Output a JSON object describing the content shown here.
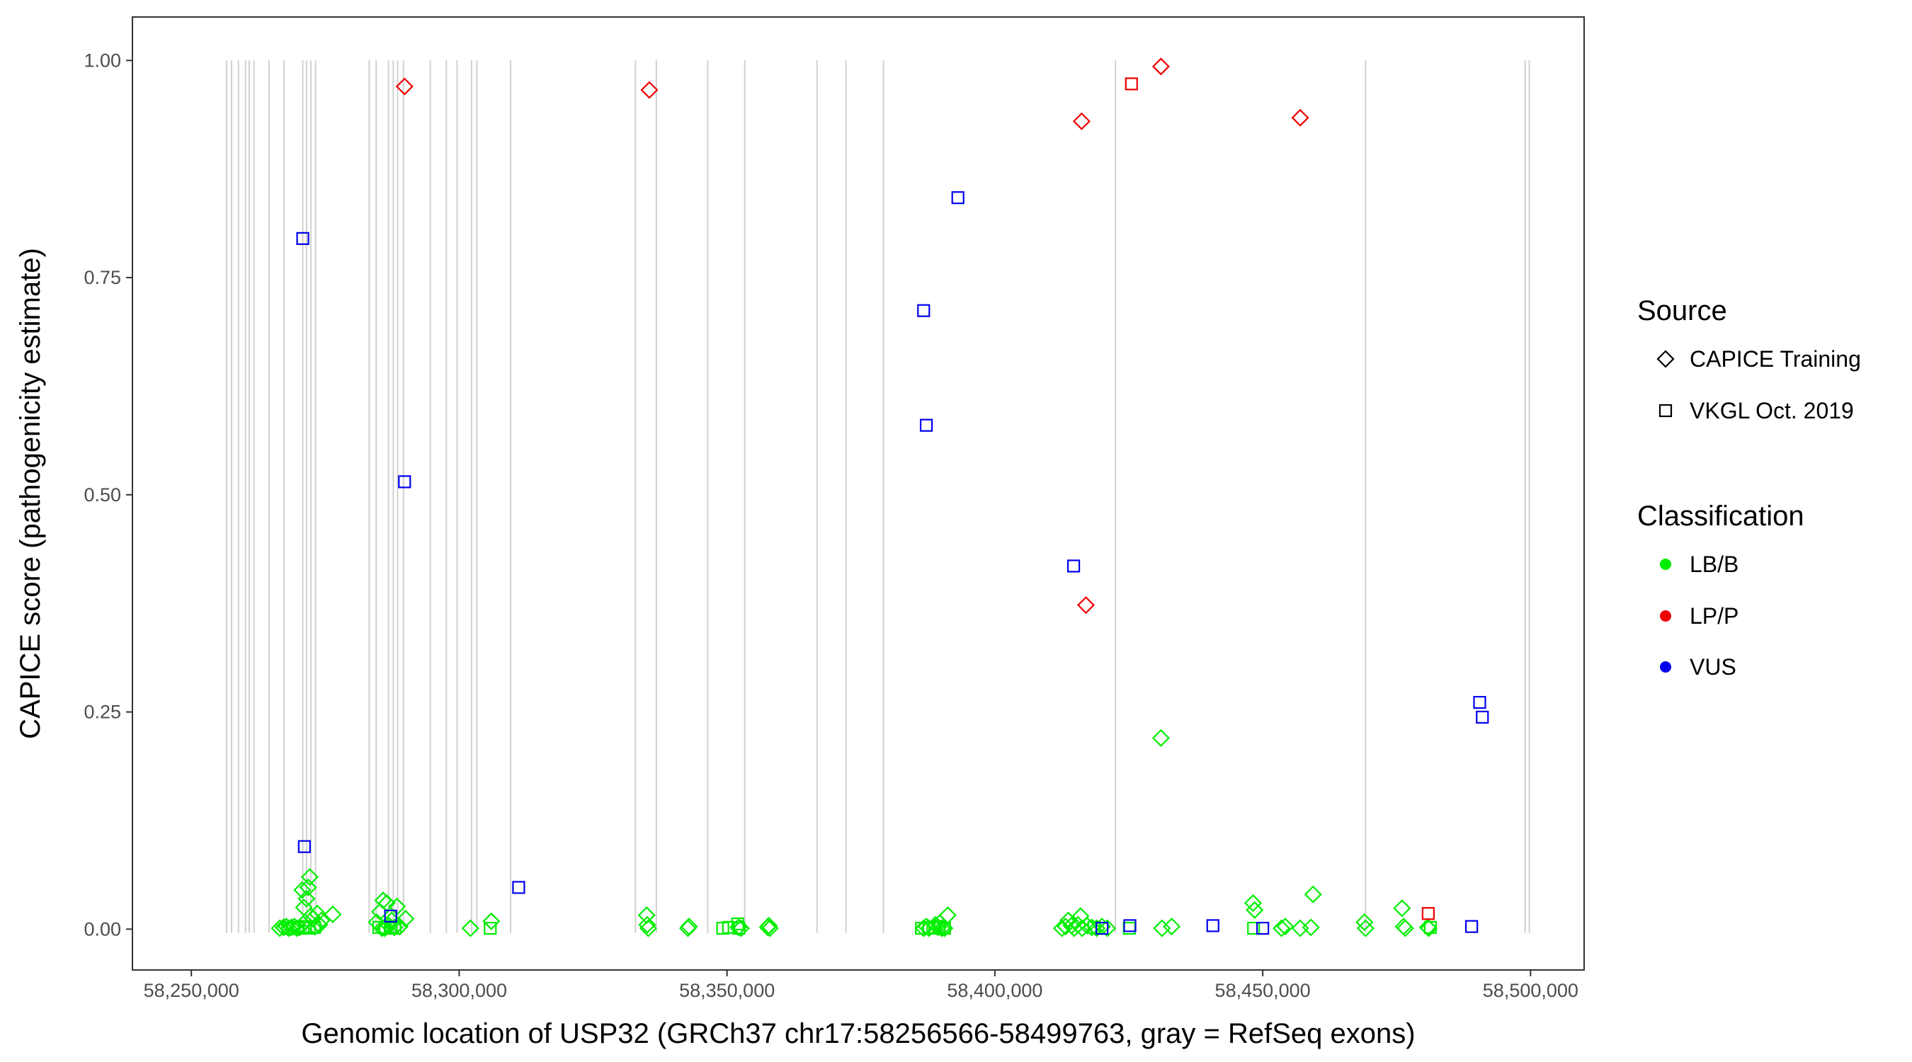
{
  "chart_data": {
    "type": "scatter",
    "xlabel": "Genomic location of USP32 (GRCh37 chr17:58256566-58499763, gray = RefSeq exons)",
    "ylabel": "CAPICE score (pathogenicity estimate)",
    "xlim": [
      58239000,
      58510000
    ],
    "ylim": [
      -0.047,
      1.05
    ],
    "x_ticks": [
      58250000,
      58300000,
      58350000,
      58400000,
      58450000,
      58500000
    ],
    "x_tick_labels": [
      "58,250,000",
      "58,300,000",
      "58,350,000",
      "58,400,000",
      "58,450,000",
      "58,500,000"
    ],
    "y_ticks": [
      0,
      0.25,
      0.5,
      0.75,
      1.0
    ],
    "y_tick_labels": [
      "0.00",
      "0.25",
      "0.50",
      "0.75",
      "1.00"
    ],
    "grid": false,
    "exons": [
      58256566,
      58257500,
      58258800,
      58260100,
      58260800,
      58261700,
      58264500,
      58267300,
      58270800,
      58271500,
      58272300,
      58273200,
      58283200,
      58284500,
      58286800,
      58287700,
      58288500,
      58289600,
      58294600,
      58297600,
      58299600,
      58302300,
      58303300,
      58309600,
      58332900,
      58336800,
      58346400,
      58353300,
      58366800,
      58372200,
      58379200,
      58422500,
      58469200,
      58499000,
      58499763
    ],
    "legend": {
      "position": "right",
      "shape_title": "Source",
      "shape_entries": [
        {
          "label": "CAPICE Training",
          "shape": "diamond"
        },
        {
          "label": "VKGL Oct. 2019",
          "shape": "square"
        }
      ],
      "color_title": "Classification",
      "color_entries": [
        {
          "label": "LB/B",
          "color": "#00ee00"
        },
        {
          "label": "LP/P",
          "color": "#ee0000"
        },
        {
          "label": "VUS",
          "color": "#0000ee"
        }
      ]
    },
    "series": [
      {
        "source": "CAPICE Training",
        "shape": "diamond",
        "classification": "LB/B",
        "color": "#00ee00",
        "points": [
          [
            58266500,
            0.001
          ],
          [
            58267200,
            0.002
          ],
          [
            58267700,
            0.003
          ],
          [
            58268200,
            0.001
          ],
          [
            58268700,
            0.002
          ],
          [
            58269200,
            0.003
          ],
          [
            58269700,
            0.001
          ],
          [
            58270200,
            0.002
          ],
          [
            58270700,
            0.045
          ],
          [
            58271000,
            0.025
          ],
          [
            58271200,
            0.008
          ],
          [
            58271500,
            0.035
          ],
          [
            58271800,
            0.048
          ],
          [
            58272100,
            0.06
          ],
          [
            58272300,
            0.015
          ],
          [
            58272700,
            0.012
          ],
          [
            58273100,
            0.003
          ],
          [
            58273500,
            0.018
          ],
          [
            58273900,
            0.005
          ],
          [
            58274300,
            0.01
          ],
          [
            58276400,
            0.017
          ],
          [
            58284600,
            0.008
          ],
          [
            58285200,
            0.02
          ],
          [
            58285600,
            0.001
          ],
          [
            58285800,
            0.033
          ],
          [
            58286100,
            0.001
          ],
          [
            58286500,
            0.03
          ],
          [
            58286900,
            0.004
          ],
          [
            58287400,
            0.01
          ],
          [
            58287900,
            0.002
          ],
          [
            58288400,
            0.026
          ],
          [
            58288900,
            0.003
          ],
          [
            58290000,
            0.012
          ],
          [
            58302100,
            0.001
          ],
          [
            58306000,
            0.009
          ],
          [
            58335000,
            0.016
          ],
          [
            58335100,
            0.005
          ],
          [
            58335300,
            0.001
          ],
          [
            58342700,
            0.001
          ],
          [
            58342900,
            0.003
          ],
          [
            58352100,
            0.002
          ],
          [
            58352600,
            0.001
          ],
          [
            58357600,
            0.002
          ],
          [
            58357800,
            0.004
          ],
          [
            58358000,
            0.001
          ],
          [
            58386700,
            0.001
          ],
          [
            58387200,
            0.003
          ],
          [
            58387700,
            0.001
          ],
          [
            58388900,
            0.005
          ],
          [
            58389400,
            0.002
          ],
          [
            58389700,
            0.007
          ],
          [
            58390100,
            0.001
          ],
          [
            58390600,
            0.001
          ],
          [
            58391200,
            0.016
          ],
          [
            58412500,
            0.001
          ],
          [
            58413200,
            0.003
          ],
          [
            58413700,
            0.01
          ],
          [
            58414300,
            0.004
          ],
          [
            58414800,
            0.001
          ],
          [
            58415500,
            0.005
          ],
          [
            58416000,
            0.015
          ],
          [
            58416300,
            0.001
          ],
          [
            58417200,
            0.004
          ],
          [
            58418100,
            0.002
          ],
          [
            58419000,
            0.001
          ],
          [
            58420000,
            0.003
          ],
          [
            58421000,
            0.001
          ],
          [
            58431000,
            0.22
          ],
          [
            58431200,
            0.001
          ],
          [
            58433000,
            0.003
          ],
          [
            58448200,
            0.03
          ],
          [
            58448500,
            0.022
          ],
          [
            58453500,
            0.001
          ],
          [
            58454200,
            0.003
          ],
          [
            58457000,
            0.001
          ],
          [
            58459000,
            0.002
          ],
          [
            58459400,
            0.04
          ],
          [
            58469000,
            0.008
          ],
          [
            58469200,
            0.001
          ],
          [
            58476000,
            0.024
          ],
          [
            58476300,
            0.003
          ],
          [
            58476600,
            0.001
          ],
          [
            58480800,
            0.002
          ],
          [
            58481000,
            0.001
          ]
        ]
      },
      {
        "source": "VKGL Oct. 2019",
        "shape": "square",
        "classification": "LB/B",
        "color": "#00ee00",
        "points": [
          [
            58268000,
            0.001
          ],
          [
            58269000,
            0.002
          ],
          [
            58270000,
            0.001
          ],
          [
            58271300,
            0.003
          ],
          [
            58272000,
            0.001
          ],
          [
            58273000,
            0.002
          ],
          [
            58285000,
            0.002
          ],
          [
            58286200,
            0.001
          ],
          [
            58287300,
            0.003
          ],
          [
            58288000,
            0.001
          ],
          [
            58305800,
            0.001
          ],
          [
            58349200,
            0.001
          ],
          [
            58350300,
            0.002
          ],
          [
            58352000,
            0.006
          ],
          [
            58352200,
            0.001
          ],
          [
            58386300,
            0.001
          ],
          [
            58387700,
            0.002
          ],
          [
            58388800,
            0.001
          ],
          [
            58389600,
            0.003
          ],
          [
            58390600,
            0.001
          ],
          [
            58418500,
            0.002
          ],
          [
            58425100,
            0.001
          ],
          [
            58448300,
            0.001
          ],
          [
            58481300,
            0.002
          ]
        ]
      },
      {
        "source": "CAPICE Training",
        "shape": "diamond",
        "classification": "LP/P",
        "color": "#ee0000",
        "points": [
          [
            58289800,
            0.97
          ],
          [
            58335500,
            0.966
          ],
          [
            58416200,
            0.93
          ],
          [
            58417000,
            0.373
          ],
          [
            58431000,
            0.993
          ],
          [
            58457000,
            0.934
          ]
        ]
      },
      {
        "source": "VKGL Oct. 2019",
        "shape": "square",
        "classification": "LP/P",
        "color": "#ee0000",
        "points": [
          [
            58425500,
            0.973
          ],
          [
            58480900,
            0.018
          ]
        ]
      },
      {
        "source": "VKGL Oct. 2019",
        "shape": "square",
        "classification": "VUS",
        "color": "#0000ee",
        "points": [
          [
            58270800,
            0.795
          ],
          [
            58271100,
            0.095
          ],
          [
            58287200,
            0.015
          ],
          [
            58289800,
            0.515
          ],
          [
            58311100,
            0.048
          ],
          [
            58386700,
            0.712
          ],
          [
            58387200,
            0.58
          ],
          [
            58393100,
            0.842
          ],
          [
            58414700,
            0.418
          ],
          [
            58420000,
            0.001
          ],
          [
            58425200,
            0.004
          ],
          [
            58440700,
            0.004
          ],
          [
            58450000,
            0.001
          ],
          [
            58489000,
            0.003
          ],
          [
            58490500,
            0.261
          ],
          [
            58491000,
            0.244
          ]
        ]
      }
    ]
  }
}
